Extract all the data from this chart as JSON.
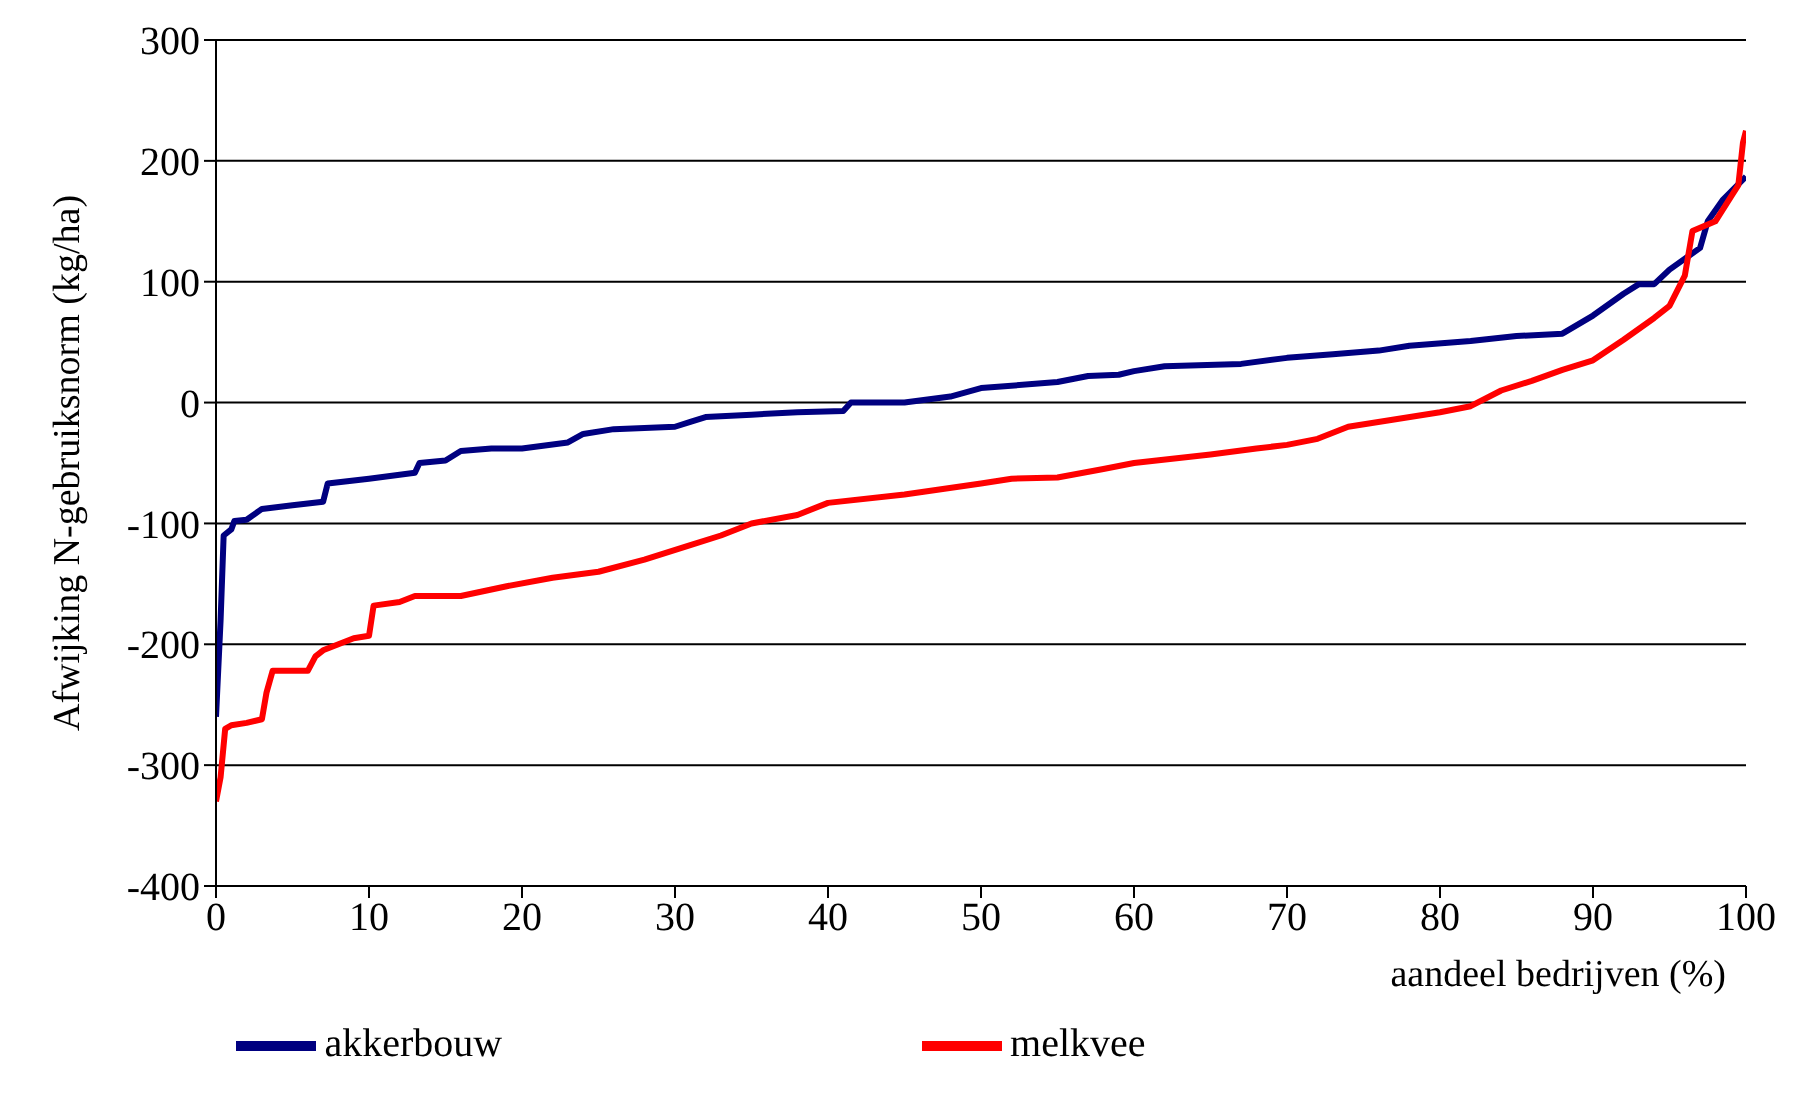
{
  "chart_data": {
    "type": "line",
    "xlabel": "aandeel bedrijven (%)",
    "ylabel": "Afwijking N-gebruiksnorm (kg/ha)",
    "xlim": [
      0,
      100
    ],
    "xticks": [
      0,
      10,
      20,
      30,
      40,
      50,
      60,
      70,
      80,
      90,
      100
    ],
    "ylim": [
      -400,
      300
    ],
    "yticks": [
      -400,
      -300,
      -200,
      -100,
      0,
      100,
      200,
      300
    ],
    "grid": "y",
    "legend": "bottom",
    "marker": "none",
    "line_style": "solid",
    "series": [
      {
        "name": "akkerbouw",
        "color": "#000080",
        "x": [
          0,
          0.3,
          0.5,
          1,
          1.2,
          2,
          3,
          5,
          7,
          7.3,
          10,
          13,
          13.3,
          15,
          16,
          18,
          20,
          23,
          24,
          26,
          30,
          31,
          32,
          35,
          38,
          41,
          41.5,
          45,
          48,
          50,
          55,
          57,
          59,
          60,
          62,
          67,
          70,
          73,
          76,
          78,
          82,
          85,
          88,
          90,
          92,
          93,
          94,
          95,
          97,
          97.5,
          98.5,
          100
        ],
        "values": [
          -260,
          -180,
          -110,
          -105,
          -98,
          -97,
          -88,
          -85,
          -82,
          -67,
          -63,
          -58,
          -50,
          -48,
          -40,
          -38,
          -38,
          -33,
          -26,
          -22,
          -20,
          -16,
          -12,
          -10,
          -8,
          -7,
          0,
          0,
          5,
          12,
          17,
          22,
          23,
          26,
          30,
          32,
          37,
          40,
          43,
          47,
          51,
          55,
          57,
          72,
          90,
          98,
          98,
          110,
          128,
          150,
          168,
          187
        ]
      },
      {
        "name": "melkvee",
        "color": "#ff0000",
        "x": [
          0,
          0.3,
          0.6,
          1,
          2,
          3,
          3.3,
          3.7,
          6,
          6.5,
          7,
          8,
          9,
          10,
          10.3,
          12,
          13,
          16,
          19,
          22,
          25,
          28,
          31,
          33,
          35,
          38,
          40,
          45,
          50,
          52,
          55,
          58,
          60,
          65,
          68,
          70,
          72,
          74,
          77,
          80,
          82,
          84,
          86,
          88,
          90,
          92,
          94,
          95,
          96,
          96.5,
          98,
          99,
          99.5,
          99.8,
          100
        ],
        "values": [
          -330,
          -310,
          -270,
          -267,
          -265,
          -262,
          -240,
          -222,
          -222,
          -210,
          -205,
          -200,
          -195,
          -193,
          -168,
          -165,
          -160,
          -160,
          -152,
          -145,
          -140,
          -130,
          -118,
          -110,
          -100,
          -93,
          -83,
          -76,
          -67,
          -63,
          -62,
          -55,
          -50,
          -43,
          -38,
          -35,
          -30,
          -20,
          -14,
          -8,
          -3,
          10,
          18,
          27,
          35,
          52,
          70,
          80,
          105,
          142,
          150,
          170,
          180,
          215,
          225
        ]
      }
    ]
  }
}
